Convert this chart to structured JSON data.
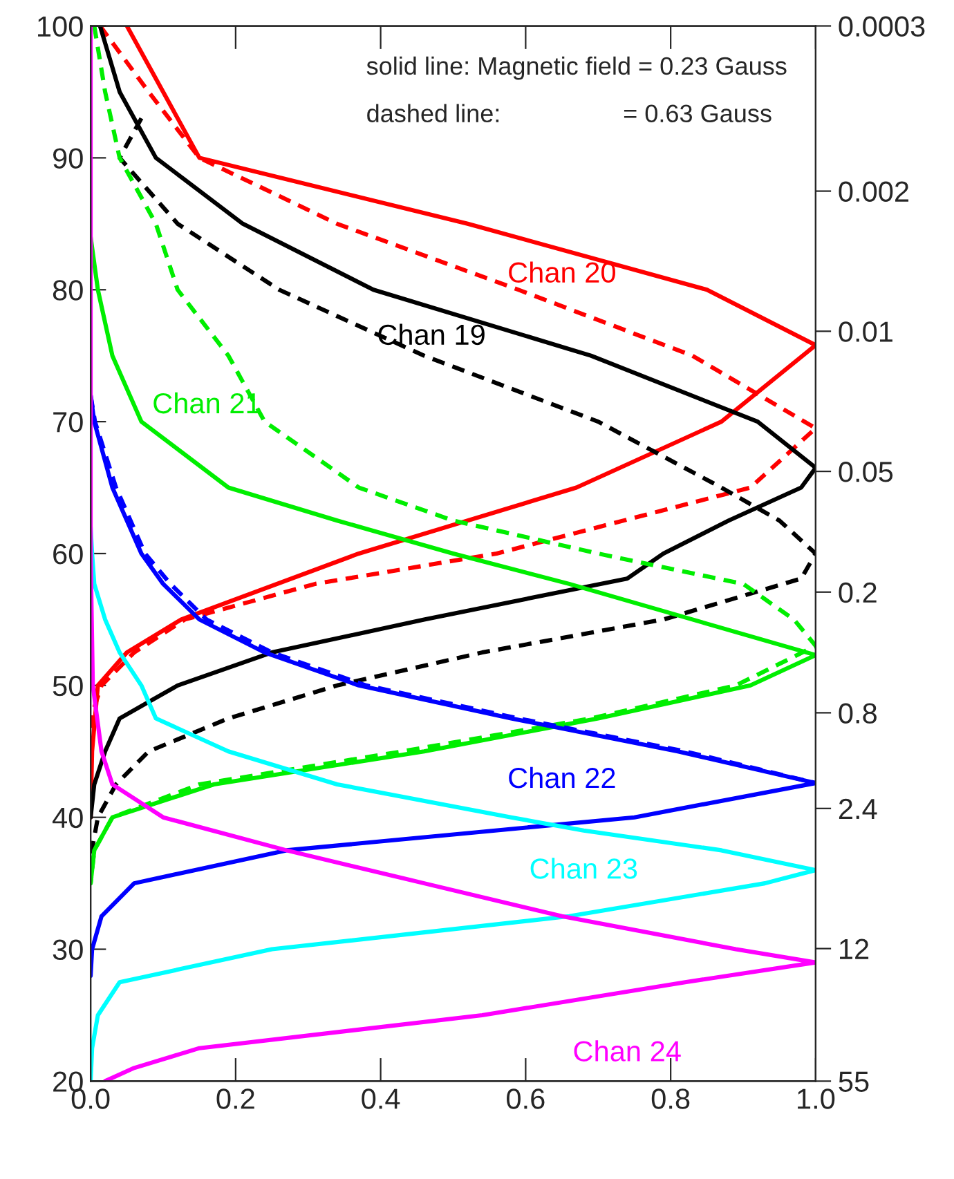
{
  "chart_data": {
    "type": "line",
    "xlim": [
      0,
      1
    ],
    "xticks": [
      {
        "value": 0,
        "label": "0.0"
      },
      {
        "value": 0.2,
        "label": "0.2"
      },
      {
        "value": 0.4,
        "label": "0.4"
      },
      {
        "value": 0.6,
        "label": "0.6"
      },
      {
        "value": 0.8,
        "label": "0.8"
      },
      {
        "value": 1,
        "label": "1.0"
      }
    ],
    "ylim": [
      20,
      100
    ],
    "yticks": [
      20,
      30,
      40,
      50,
      60,
      70,
      80,
      90,
      100
    ],
    "log": "y2",
    "y2lim": [
      55,
      0.0003
    ],
    "y2ticks": [
      55,
      12,
      2.4,
      0.8,
      0.2,
      0.05,
      0.01,
      0.002,
      0.0003
    ],
    "grid": false,
    "legend": false,
    "series": [
      {
        "name": "Chan 20",
        "color": "#ff0000",
        "line_style": "solid",
        "x": [
          0.05,
          0.15,
          0.52,
          0.85,
          1.0,
          0.87,
          0.67,
          0.37,
          0.125,
          0.05,
          0.01,
          0.002,
          0
        ],
        "values": [
          100,
          90,
          85,
          80,
          75.8,
          70,
          65,
          60,
          55,
          52.5,
          50,
          45,
          40
        ]
      },
      {
        "color": "#ff0000",
        "line_style": "dashed",
        "x": [
          0.013,
          0.08,
          0.15,
          0.34,
          0.59,
          0.83,
          1.0,
          0.91,
          0.56,
          0.31,
          0.13,
          0.06,
          0.015,
          0.003,
          0
        ],
        "values": [
          100,
          95,
          90,
          85,
          80,
          75,
          69.5,
          65,
          60,
          57.7,
          55,
          52.5,
          50,
          48,
          45
        ]
      },
      {
        "name": "Chan 19",
        "color": "#000000",
        "line_style": "solid",
        "x": [
          0.013,
          0.04,
          0.09,
          0.21,
          0.39,
          0.69,
          0.92,
          1.0,
          0.98,
          0.88,
          0.79,
          0.74,
          0.46,
          0.25,
          0.12,
          0.04,
          0.02,
          0.005,
          0
        ],
        "values": [
          100,
          95,
          90,
          85,
          80,
          75,
          70,
          66.5,
          65,
          62.5,
          60,
          58.1,
          55,
          52.5,
          50,
          47.5,
          45,
          42.5,
          40
        ]
      },
      {
        "color": "#000000",
        "line_style": "dashed",
        "x": [
          0.07,
          0.04,
          0.12,
          0.26,
          0.46,
          0.7,
          0.87,
          0.95,
          1.0,
          0.98,
          0.79,
          0.54,
          0.34,
          0.19,
          0.08,
          0.035,
          0.01,
          0
        ],
        "values": [
          93,
          90,
          85,
          80,
          75,
          70,
          65,
          62.5,
          60,
          58.1,
          55,
          52.5,
          50,
          47.5,
          45,
          42.5,
          40,
          37
        ]
      },
      {
        "name": "Chan 21",
        "color": "#00ee00",
        "line_style": "solid",
        "x": [
          0,
          0.01,
          0.03,
          0.07,
          0.19,
          0.34,
          0.5,
          0.66,
          0.83,
          1.0,
          0.91,
          0.7,
          0.46,
          0.17,
          0.03,
          0.005,
          0
        ],
        "values": [
          84,
          80,
          75,
          70,
          65,
          62.5,
          60,
          57.7,
          55,
          52.3,
          50,
          47.5,
          45,
          42.5,
          40,
          37.5,
          35
        ]
      },
      {
        "color": "#00ee00",
        "line_style": "dashed",
        "x": [
          0.005,
          0.02,
          0.04,
          0.09,
          0.12,
          0.19,
          0.24,
          0.37,
          0.5,
          0.7,
          0.9,
          0.97,
          1.0,
          0.89,
          0.69,
          0.43,
          0.15,
          0.03,
          0.005,
          0
        ],
        "values": [
          100,
          95,
          90,
          85,
          80,
          75,
          70,
          65,
          62.5,
          60,
          57.7,
          55,
          53,
          50,
          47.5,
          45,
          42.5,
          40,
          37.5,
          35
        ]
      },
      {
        "name": "Chan 22",
        "color": "#0000ff",
        "line_style": "solid",
        "x": [
          0,
          0.005,
          0.03,
          0.05,
          0.07,
          0.1,
          0.15,
          0.24,
          0.37,
          0.58,
          0.81,
          1.0,
          0.75,
          0.27,
          0.06,
          0.015,
          0.002,
          0
        ],
        "values": [
          72,
          70,
          65,
          62.5,
          60,
          57.7,
          55,
          52.5,
          50,
          47.5,
          45,
          42.6,
          40,
          37.5,
          35,
          32.5,
          30,
          28
        ]
      },
      {
        "color": "#0000ff",
        "line_style": "dashed",
        "x": [
          0,
          0.006,
          0.035,
          0.055,
          0.075,
          0.11,
          0.16,
          0.25,
          0.38,
          0.59,
          0.82,
          1.0
        ],
        "values": [
          72,
          70,
          65,
          62.5,
          60,
          57.7,
          55,
          52.5,
          50,
          47.5,
          45,
          42.6
        ]
      },
      {
        "name": "Chan 23",
        "color": "#00ffff",
        "line_style": "solid",
        "x": [
          0,
          0.002,
          0.005,
          0.02,
          0.04,
          0.07,
          0.09,
          0.19,
          0.34,
          0.58,
          0.68,
          0.87,
          1.0,
          0.93,
          0.66,
          0.25,
          0.04,
          0.01,
          0.002,
          0
        ],
        "values": [
          62,
          60,
          57.7,
          55,
          52.5,
          50,
          47.5,
          45,
          42.5,
          40,
          39,
          37.5,
          36,
          35,
          32.5,
          30,
          27.5,
          25,
          22.5,
          20
        ]
      },
      {
        "name": "Chan 24",
        "color": "#ff00ff",
        "line_style": "solid",
        "x": [
          0,
          0,
          0.003,
          0.015,
          0.03,
          0.1,
          0.27,
          0.46,
          0.65,
          0.89,
          1.0,
          0.82,
          0.54,
          0.15,
          0.06,
          0.02
        ],
        "values": [
          100,
          60,
          50,
          45,
          42.5,
          40,
          37.5,
          35,
          32.5,
          30,
          29,
          27.5,
          25,
          22.5,
          21,
          20
        ]
      }
    ],
    "annotations": [
      "solid line: Magnetic field = 0.23 Gauss",
      "dashed line:",
      "= 0.63 Gauss"
    ]
  }
}
